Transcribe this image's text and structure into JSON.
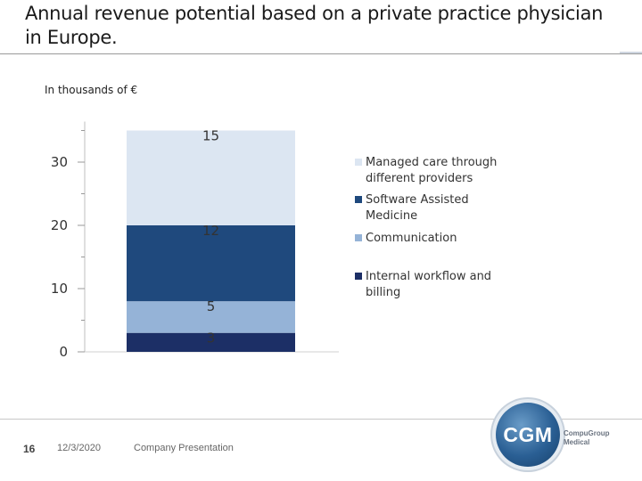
{
  "slide": {
    "title": "Annual revenue potential based on a private practice physician in Europe.",
    "unit_label": "In thousands of €"
  },
  "chart_data": {
    "type": "bar",
    "stacked": true,
    "title": "Annual revenue potential based on a private practice physician in Europe.",
    "ylabel": "In thousands of €",
    "xlabel": "",
    "ylim": [
      0,
      35
    ],
    "y_ticks": [
      0,
      10,
      20,
      30
    ],
    "y_tick_labels": [
      "0",
      "10",
      "20",
      "30"
    ],
    "categories": [
      ""
    ],
    "legend_position": "right",
    "series": [
      {
        "name": "Internal workflow and billing",
        "values": [
          3
        ],
        "label": "3",
        "color": "#1c2f66"
      },
      {
        "name": "Communication",
        "values": [
          5
        ],
        "label": "5",
        "color": "#95b3d7"
      },
      {
        "name": "Software Assisted Medicine",
        "values": [
          12
        ],
        "label": "12",
        "color": "#1f497d"
      },
      {
        "name": "Managed care through different providers",
        "values": [
          15
        ],
        "label": "15",
        "color": "#dce6f2"
      }
    ],
    "legend_order": [
      "Managed care through different providers",
      "Software Assisted Medicine",
      "Communication",
      "Internal workflow and billing"
    ]
  },
  "footer": {
    "page_number": "16",
    "date": "12/3/2020",
    "caption": "Company Presentation"
  },
  "logo": {
    "mark": "CGM",
    "brand_line1": "CompuGroup",
    "brand_line2": "Medical"
  }
}
